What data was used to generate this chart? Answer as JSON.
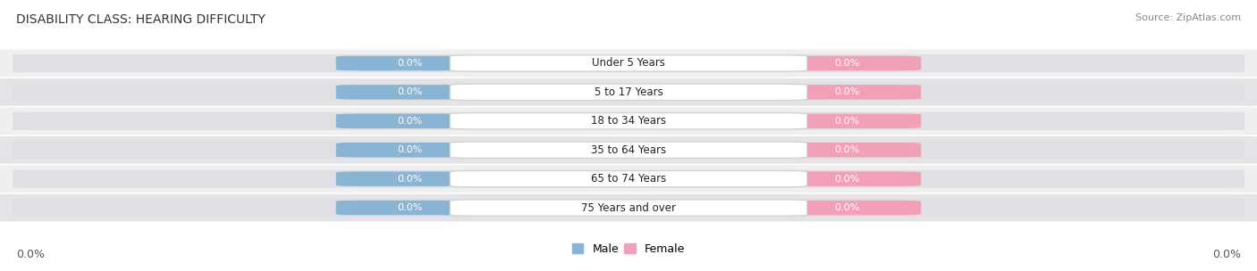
{
  "title": "DISABILITY CLASS: HEARING DIFFICULTY",
  "source": "Source: ZipAtlas.com",
  "categories": [
    "Under 5 Years",
    "5 to 17 Years",
    "18 to 34 Years",
    "35 to 64 Years",
    "65 to 74 Years",
    "75 Years and over"
  ],
  "male_values": [
    "0.0%",
    "0.0%",
    "0.0%",
    "0.0%",
    "0.0%",
    "0.0%"
  ],
  "female_values": [
    "0.0%",
    "0.0%",
    "0.0%",
    "0.0%",
    "0.0%",
    "0.0%"
  ],
  "male_color": "#8ab4d4",
  "female_color": "#f2a0b8",
  "bar_bg_color": "#e0e0e4",
  "row_bg_even": "#efefef",
  "row_bg_odd": "#e4e4e8",
  "title_fontsize": 10,
  "source_fontsize": 8,
  "cat_fontsize": 8.5,
  "value_fontsize": 8,
  "axis_value": "0.0%",
  "background_color": "#ffffff",
  "legend_male": "Male",
  "legend_female": "Female"
}
